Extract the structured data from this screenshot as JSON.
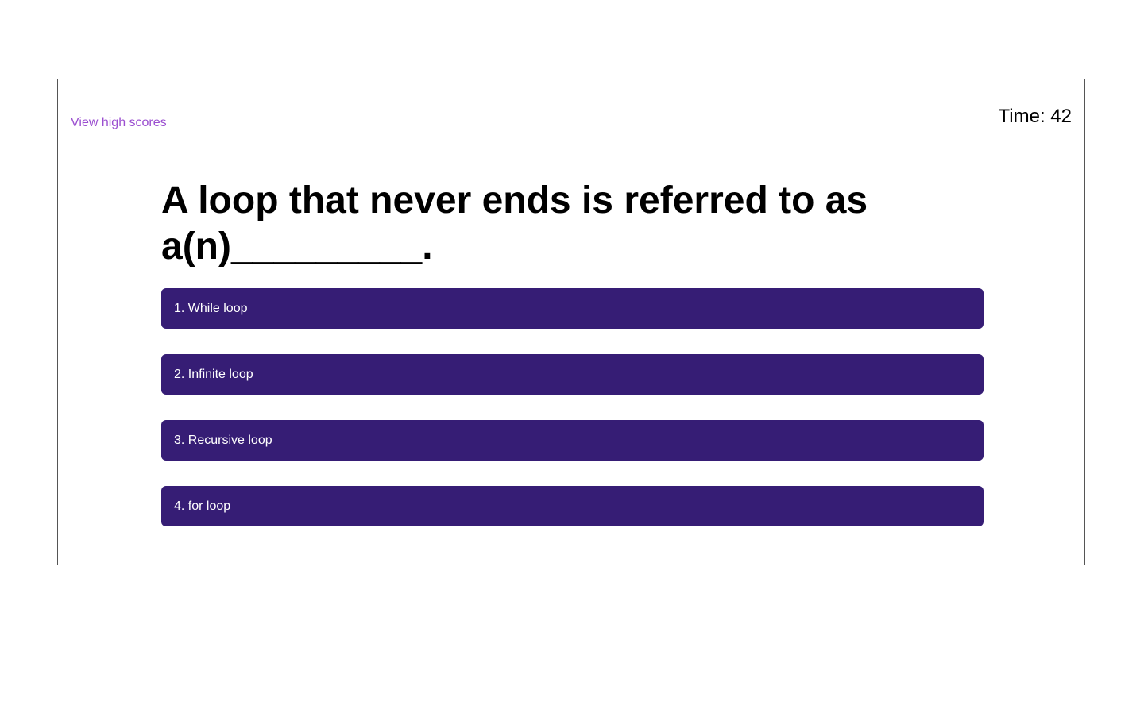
{
  "header": {
    "high_scores_link": "View high scores",
    "timer": "Time: 42"
  },
  "quiz": {
    "question": "A loop that never ends is referred to as a(n)_________.",
    "answers": [
      {
        "label": "1. While loop"
      },
      {
        "label": "2. Infinite loop"
      },
      {
        "label": "3. Recursive loop"
      },
      {
        "label": "4. for loop"
      }
    ]
  },
  "colors": {
    "link": "#9b4fd0",
    "answer_background": "#361d75",
    "answer_text": "#ffffff",
    "frame_border": "#555555"
  }
}
